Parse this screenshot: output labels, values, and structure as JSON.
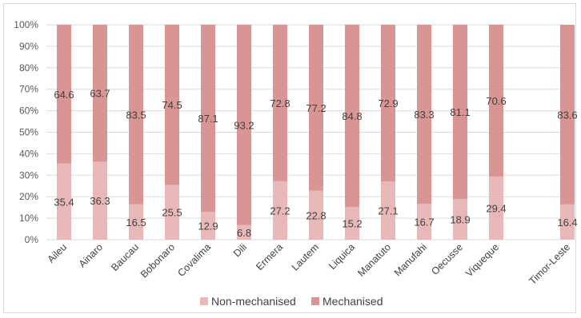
{
  "chart_data": {
    "type": "bar",
    "stacked": true,
    "categories": [
      "Aileu",
      "Ainaro",
      "Baucau",
      "Bobonaro",
      "Covalima",
      "Dili",
      "Ermera",
      "Lautem",
      "Liquica",
      "Manatuto",
      "Manufahi",
      "Oecusse",
      "Viqueque",
      "Timor-Leste"
    ],
    "series": [
      {
        "name": "Non-mechanised",
        "color": "#e8b8b8",
        "values": [
          35.4,
          36.3,
          16.5,
          25.5,
          12.9,
          6.8,
          27.2,
          22.8,
          15.2,
          27.1,
          16.7,
          18.9,
          29.4,
          16.4
        ]
      },
      {
        "name": "Mechanised",
        "color": "#d99594",
        "values": [
          64.6,
          63.7,
          83.5,
          74.5,
          87.1,
          93.2,
          72.8,
          77.2,
          84.8,
          72.9,
          83.3,
          81.1,
          70.6,
          83.6
        ]
      }
    ],
    "ylim": [
      0,
      100
    ],
    "yticks": [
      "0%",
      "10%",
      "20%",
      "30%",
      "40%",
      "50%",
      "60%",
      "70%",
      "80%",
      "90%",
      "100%"
    ],
    "grid": true,
    "legend": "bottom"
  }
}
